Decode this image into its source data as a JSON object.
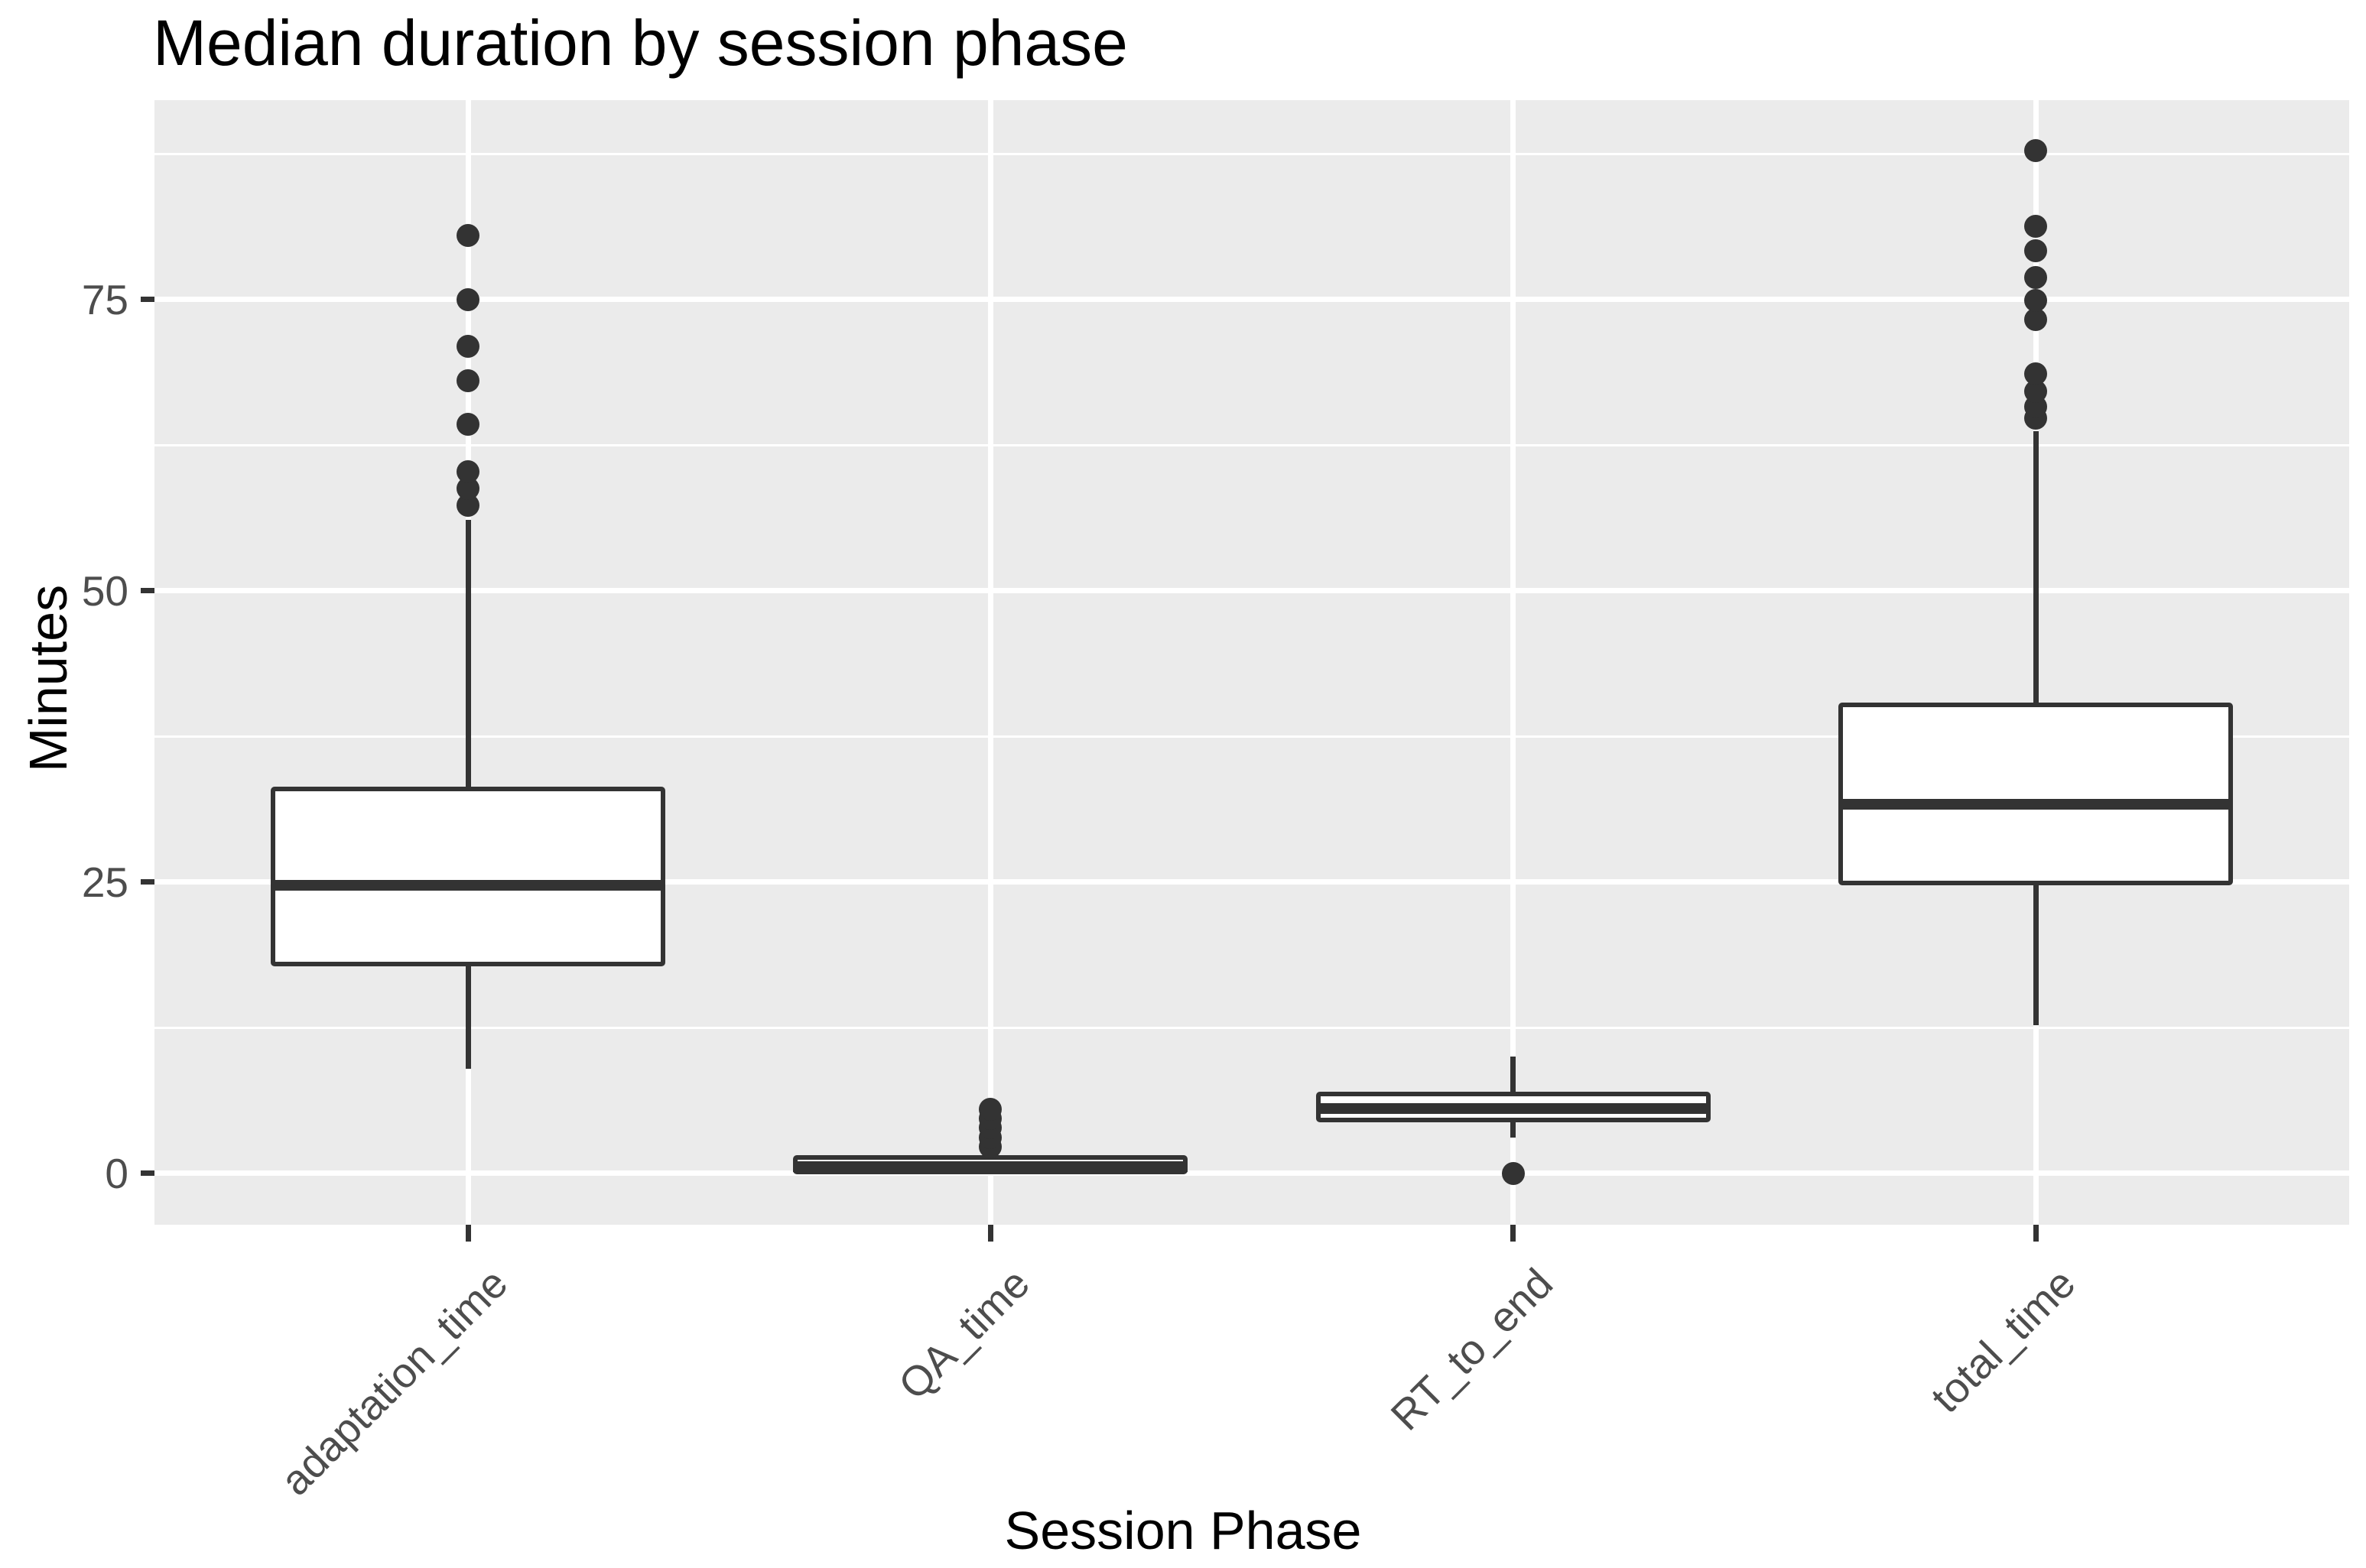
{
  "chart_data": {
    "type": "boxplot",
    "title": "Median duration by session phase",
    "xlabel": "Session Phase",
    "ylabel": "Minutes",
    "categories": [
      "adaptation_time",
      "QA_time",
      "RT_to_end",
      "total_time"
    ],
    "ytick_values": [
      0,
      25,
      50,
      75
    ],
    "ytick_labels": [
      "0",
      "25",
      "50",
      "75"
    ],
    "ytick_minor_values": [
      12.5,
      37.5,
      62.5,
      87.5
    ],
    "ylim": [
      -4.4,
      92.1
    ],
    "grid": "on",
    "legend": "none",
    "series": [
      {
        "name": "adaptation_time",
        "q1": 18.0,
        "median": 24.7,
        "q3": 33.0,
        "whisker_low": 9.0,
        "whisker_high": 56.1,
        "outliers": [
          57.3,
          58.8,
          60.2,
          64.3,
          68.0,
          71.0,
          75.0,
          80.5
        ]
      },
      {
        "name": "QA_time",
        "q1": 0.1,
        "median": 0.6,
        "q3": 1.4,
        "whisker_low": 0.0,
        "whisker_high": 1.5,
        "outliers": [
          2.3,
          3.1,
          3.9,
          4.7,
          5.5
        ]
      },
      {
        "name": "RT_to_end",
        "q1": 4.6,
        "median": 5.6,
        "q3": 6.8,
        "whisker_low": 3.1,
        "whisker_high": 10.0,
        "outliers": [
          0.0
        ]
      },
      {
        "name": "total_time",
        "q1": 24.9,
        "median": 31.7,
        "q3": 40.2,
        "whisker_low": 12.7,
        "whisker_high": 63.7,
        "outliers": [
          64.8,
          65.8,
          67.1,
          68.6,
          73.3,
          74.9,
          76.9,
          79.2,
          81.3,
          87.8
        ]
      }
    ],
    "colors": {
      "panel_background": "#EBEBEB",
      "gridline": "#FFFFFF",
      "box_stroke": "#333333",
      "box_fill": "#FFFFFF",
      "outlier": "#333333",
      "tick_label": "#4D4D4D",
      "text": "#000000"
    }
  }
}
